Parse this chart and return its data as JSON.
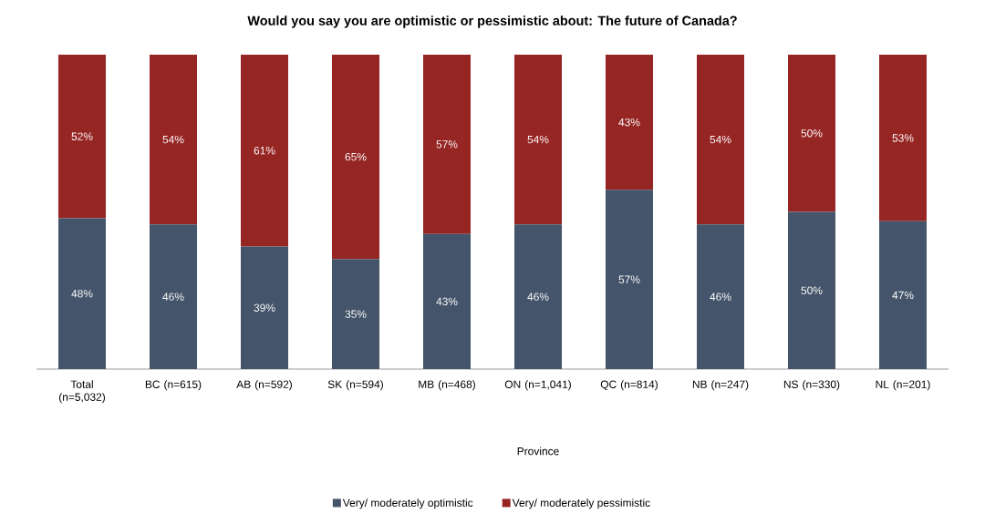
{
  "chart_data": {
    "type": "bar",
    "title": "Would you say you are optimistic or pessimistic about: The future of Canada?",
    "categories": [
      "Total (n=5,032)",
      "BC (n=615)",
      "AB (n=592)",
      "SK (n=594)",
      "MB (n=468)",
      "ON (n=1,041)",
      "QC (n=814)",
      "NB (n=247)",
      "NS (n=330)",
      "NL (n=201)"
    ],
    "stacked": true,
    "legend": "bottom",
    "annotations": [
      "Province"
    ],
    "series": [
      {
        "name": "Very/ moderately optimistic",
        "color": "#44546a",
        "values": [
          48,
          46,
          39,
          35,
          43,
          46,
          57,
          46,
          50,
          47
        ],
        "value_labels": [
          "48%",
          "46%",
          "39%",
          "35%",
          "43%",
          "46%",
          "57%",
          "46%",
          "50%",
          "47%"
        ]
      },
      {
        "name": "Very/ moderately pessimistic",
        "color": "#962624",
        "values": [
          52,
          54,
          61,
          65,
          57,
          54,
          43,
          54,
          50,
          53
        ],
        "value_labels": [
          "52%",
          "54%",
          "61%",
          "65%",
          "57%",
          "54%",
          "43%",
          "54%",
          "50%",
          "53%"
        ]
      }
    ]
  }
}
